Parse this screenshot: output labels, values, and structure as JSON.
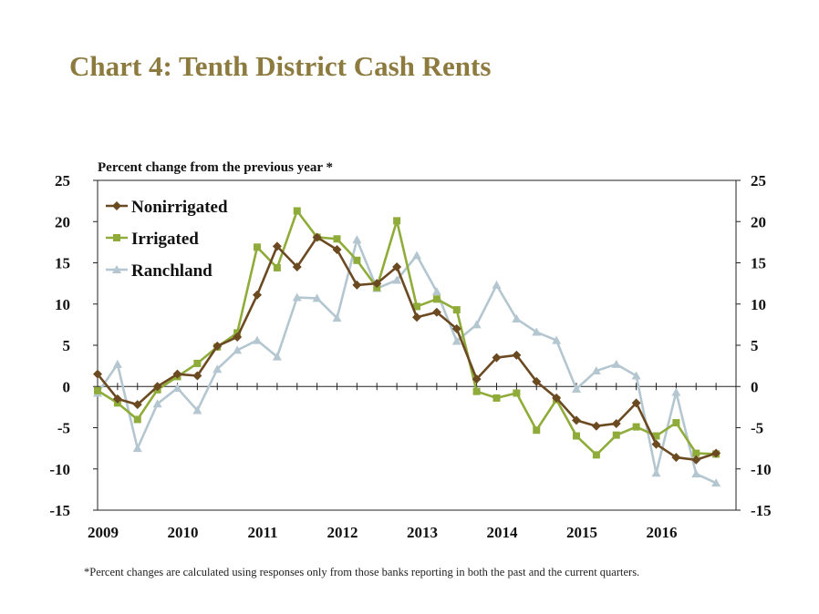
{
  "page": {
    "title": "Chart 4: Tenth District Cash Rents",
    "footnote": "*Percent changes are calculated using responses only from those banks reporting in both the past and the current quarters."
  },
  "chart_data": {
    "type": "line",
    "title": "Chart 4: Tenth District Cash Rents",
    "subtitle": "Percent change from the previous year *",
    "xlabel": "",
    "ylabel": "",
    "x_ticks": [
      "2009",
      "2010",
      "2011",
      "2012",
      "2013",
      "2014",
      "2015",
      "2016"
    ],
    "y_ticks": [
      "25",
      "20",
      "15",
      "10",
      "5",
      "0",
      "-5",
      "-10",
      "-15"
    ],
    "ylim": [
      -15,
      25
    ],
    "xlim": [
      2009,
      2017
    ],
    "x": [
      2009.0,
      2009.25,
      2009.5,
      2009.75,
      2010.0,
      2010.25,
      2010.5,
      2010.75,
      2011.0,
      2011.25,
      2011.5,
      2011.75,
      2012.0,
      2012.25,
      2012.5,
      2012.75,
      2013.0,
      2013.25,
      2013.5,
      2013.75,
      2014.0,
      2014.25,
      2014.5,
      2014.75,
      2015.0,
      2015.25,
      2015.5,
      2015.75,
      2016.0,
      2016.25,
      2016.5,
      2016.75
    ],
    "series": [
      {
        "name": "Nonirrigated",
        "color": "#6b4a22",
        "marker": "diamond",
        "values": [
          1.5,
          -1.5,
          -2.2,
          0.0,
          1.5,
          1.3,
          4.9,
          6.0,
          11.1,
          17.0,
          14.5,
          18.1,
          16.6,
          12.3,
          12.5,
          14.5,
          8.4,
          9.0,
          7.0,
          0.9,
          3.5,
          3.8,
          0.6,
          -1.4,
          -4.1,
          -4.8,
          -4.5,
          -2.0,
          -7.0,
          -8.6,
          -8.9,
          -8.1
        ]
      },
      {
        "name": "Irrigated",
        "color": "#8fac3a",
        "marker": "square",
        "values": [
          -0.5,
          -2.0,
          -4.0,
          -0.4,
          1.2,
          2.8,
          4.8,
          6.5,
          16.9,
          14.4,
          21.3,
          18.1,
          17.9,
          15.3,
          12.0,
          20.1,
          9.7,
          10.6,
          9.3,
          -0.6,
          -1.4,
          -0.8,
          -5.3,
          -1.6,
          -6.0,
          -8.3,
          -5.9,
          -4.9,
          -6.0,
          -4.4,
          -8.1,
          -8.2
        ]
      },
      {
        "name": "Ranchland",
        "color": "#b4c6cf",
        "marker": "triangle",
        "values": [
          -0.8,
          2.7,
          -7.5,
          -2.1,
          -0.2,
          -2.9,
          2.1,
          4.4,
          5.6,
          3.6,
          10.8,
          10.7,
          8.3,
          17.8,
          11.9,
          12.9,
          15.9,
          11.5,
          5.5,
          7.5,
          12.3,
          8.2,
          6.6,
          5.6,
          -0.3,
          1.9,
          2.7,
          1.3,
          -10.5,
          -0.7,
          -10.6,
          -11.7
        ]
      }
    ],
    "legend_position": "top-left",
    "grid": false
  }
}
